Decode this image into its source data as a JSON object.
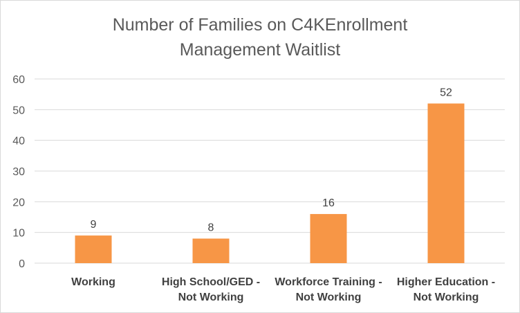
{
  "chart_data": {
    "type": "bar",
    "title_lines": [
      "Number of Families on C4KEnrollment",
      "Management Waitlist"
    ],
    "categories": [
      [
        "Working"
      ],
      [
        "High School/GED -",
        "Not Working"
      ],
      [
        "Workforce Training -",
        "Not Working"
      ],
      [
        "Higher Education -",
        "Not Working"
      ]
    ],
    "values": [
      9,
      8,
      16,
      52
    ],
    "ylim": [
      0,
      60
    ],
    "yticks": [
      0,
      10,
      20,
      30,
      40,
      50,
      60
    ],
    "grid": true,
    "legend": "none",
    "bar_color": "#f79646",
    "grid_color": "#d9d9d9"
  }
}
